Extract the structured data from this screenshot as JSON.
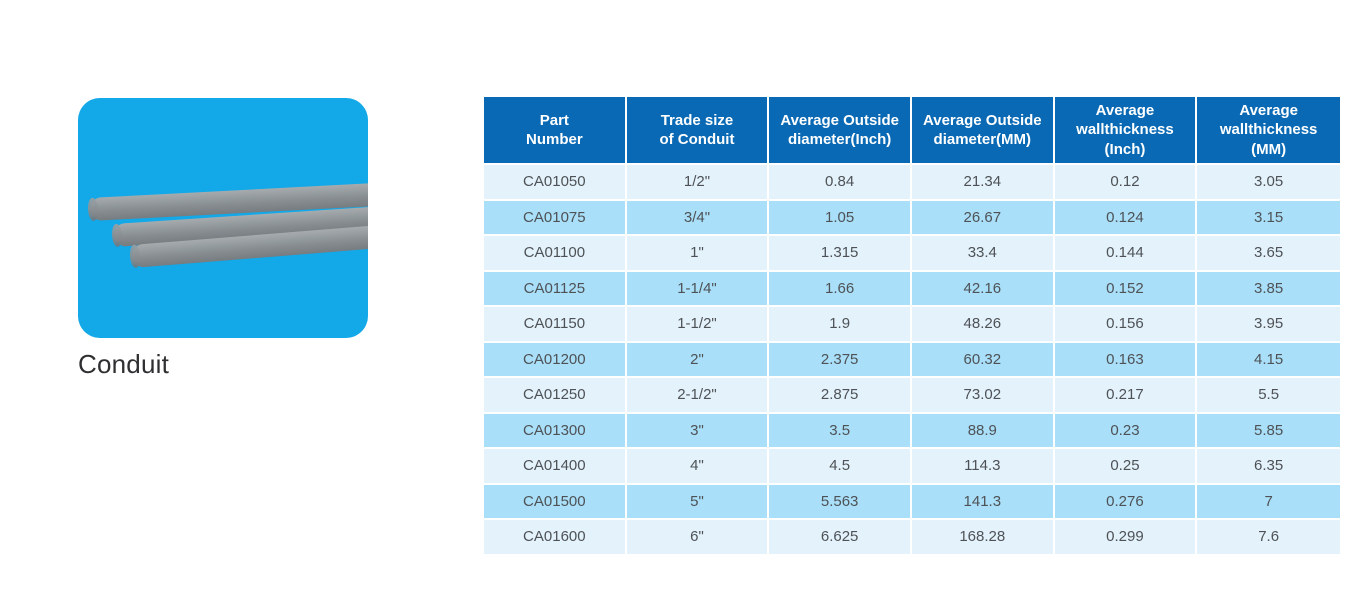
{
  "product": {
    "name": "Conduit"
  },
  "table": {
    "headers": [
      "Part\nNumber",
      "Trade size\nof Conduit",
      "Average Outside\ndiameter(Inch)",
      "Average Outside\ndiameter(MM)",
      "Average\nwallthickness\n(Inch)",
      "Average\nwallthickness\n(MM)"
    ],
    "rows": [
      [
        "CA01050",
        "1/2\"",
        "0.84",
        "21.34",
        "0.12",
        "3.05"
      ],
      [
        "CA01075",
        "3/4\"",
        "1.05",
        "26.67",
        "0.124",
        "3.15"
      ],
      [
        "CA01100",
        "1\"",
        "1.315",
        "33.4",
        "0.144",
        "3.65"
      ],
      [
        "CA01125",
        "1-1/4\"",
        "1.66",
        "42.16",
        "0.152",
        "3.85"
      ],
      [
        "CA01150",
        "1-1/2\"",
        "1.9",
        "48.26",
        "0.156",
        "3.95"
      ],
      [
        "CA01200",
        "2\"",
        "2.375",
        "60.32",
        "0.163",
        "4.15"
      ],
      [
        "CA01250",
        "2-1/2\"",
        "2.875",
        "73.02",
        "0.217",
        "5.5"
      ],
      [
        "CA01300",
        "3\"",
        "3.5",
        "88.9",
        "0.23",
        "5.85"
      ],
      [
        "CA01400",
        "4\"",
        "4.5",
        "114.3",
        "0.25",
        "6.35"
      ],
      [
        "CA01500",
        "5\"",
        "5.563",
        "141.3",
        "0.276",
        "7"
      ],
      [
        "CA01600",
        "6\"",
        "6.625",
        "168.28",
        "0.299",
        "7.6"
      ]
    ]
  },
  "colors": {
    "header_bg": "#0a69b4",
    "header_text": "#ffffff",
    "row_light": "#e3f2fb",
    "row_dark": "#a9dff8",
    "card_bg": "#13a8e8",
    "cell_text": "#4e5256"
  }
}
